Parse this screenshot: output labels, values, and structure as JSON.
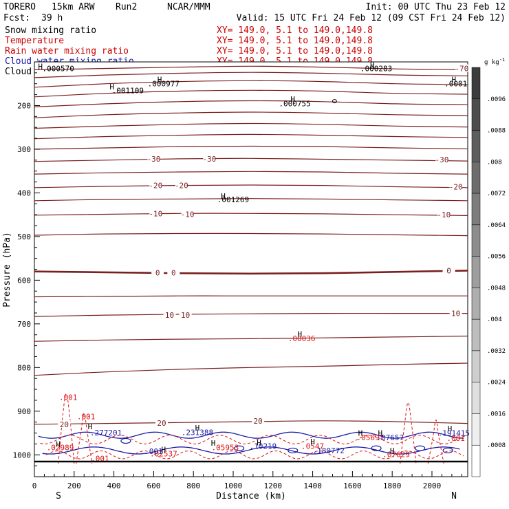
{
  "header": {
    "model": "TORERO",
    "grid": "15km ARW",
    "run": "Run2",
    "org": "NCAR/MMM",
    "init": "Init: 00 UTC Thu 23 Feb 12",
    "fcst_label": "Fcst:",
    "fcst_value": "39 h",
    "valid": "Valid: 15 UTC Fri 24 Feb 12 (09 CST Fri 24 Feb 12)"
  },
  "legend": [
    {
      "label": "Snow mixing ratio",
      "color": "#000000",
      "xy": "XY= 149.0,  5.1 to 149.0,149.8"
    },
    {
      "label": "Temperature",
      "color": "#cc0000",
      "xy": "XY= 149.0,  5.1 to 149.0,149.8"
    },
    {
      "label": "Rain water mixing ratio",
      "color": "#cc0000",
      "xy": "XY= 149.0,  5.1 to 149.0,149.8"
    },
    {
      "label": "Cloud water mixing ratio",
      "color": "#1a1aa6",
      "xy": "XY= 149.0,  5.1 to 149.0,149.8"
    },
    {
      "label": "Cloud ice mixing ratio",
      "color": "#000000",
      "xy": "XY= 149.0,  5.1 to 149.0,149.8"
    }
  ],
  "colors": {
    "temperature": "#7a1f1f",
    "rain": "#dd1111",
    "cloud_water": "#1a1aa6",
    "snow_ice": "#000000"
  },
  "chart_data": {
    "type": "line",
    "xlabel": "Distance (km)",
    "ylabel": "Pressure (hPa)",
    "xlim": [
      0,
      2180
    ],
    "ylim": [
      1050,
      100
    ],
    "x_ticks": [
      0,
      200,
      400,
      600,
      800,
      1000,
      1200,
      1400,
      1600,
      1800,
      2000
    ],
    "y_ticks": [
      200,
      300,
      400,
      500,
      600,
      700,
      800,
      900,
      1000
    ],
    "left_end": "S",
    "right_end": "N",
    "temperature_contours": [
      {
        "level": -75,
        "p": [
          118,
          115,
          112,
          110,
          112,
          116,
          118
        ]
      },
      {
        "level": -70,
        "p": [
          136,
          130,
          126,
          124,
          126,
          130,
          132
        ]
      },
      {
        "level": -65,
        "p": [
          158,
          150,
          145,
          143,
          145,
          150,
          152
        ]
      },
      {
        "level": -60,
        "p": [
          180,
          172,
          167,
          165,
          167,
          172,
          174
        ]
      },
      {
        "level": -55,
        "p": [
          203,
          196,
          191,
          189,
          191,
          196,
          198
        ]
      },
      {
        "level": -50,
        "p": [
          228,
          221,
          217,
          215,
          217,
          221,
          223
        ]
      },
      {
        "level": -45,
        "p": [
          252,
          247,
          243,
          241,
          243,
          247,
          249
        ]
      },
      {
        "level": -40,
        "p": [
          276,
          271,
          268,
          266,
          268,
          271,
          273
        ]
      },
      {
        "level": -35,
        "p": [
          300,
          297,
          294,
          293,
          294,
          297,
          299
        ]
      },
      {
        "level": -30,
        "p": [
          328,
          325,
          322,
          321,
          323,
          325,
          327
        ]
      },
      {
        "level": -25,
        "p": [
          357,
          354,
          352,
          351,
          352,
          355,
          357
        ]
      },
      {
        "level": -20,
        "p": [
          388,
          385,
          383,
          382,
          383,
          386,
          388
        ]
      },
      {
        "level": -15,
        "p": [
          418,
          415,
          414,
          413,
          414,
          416,
          418
        ]
      },
      {
        "level": -10,
        "p": [
          451,
          449,
          447,
          447,
          448,
          450,
          452
        ]
      },
      {
        "level": -5,
        "p": [
          497,
          494,
          493,
          493,
          494,
          496,
          498
        ]
      },
      {
        "level": 0,
        "p": [
          580,
          582,
          584,
          585,
          584,
          581,
          578
        ]
      },
      {
        "level": 5,
        "p": [
          638,
          637,
          636,
          636,
          636,
          636,
          636
        ]
      },
      {
        "level": 10,
        "p": [
          683,
          680,
          678,
          677,
          676,
          676,
          676
        ]
      },
      {
        "level": 15,
        "p": [
          740,
          737,
          735,
          734,
          732,
          730,
          728
        ]
      },
      {
        "level": 20,
        "p": [
          818,
          810,
          804,
          800,
          797,
          793,
          790
        ]
      },
      {
        "level": 25,
        "p": [
          930,
          928,
          926,
          924,
          922,
          924,
          928
        ]
      }
    ],
    "temperature_labels": [
      {
        "text": "-70",
        "x": 2150,
        "p": 115
      },
      {
        "text": "-30",
        "x": 600,
        "p": 322
      },
      {
        "text": "-30",
        "x": 880,
        "p": 322
      },
      {
        "text": "-30",
        "x": 2050,
        "p": 324
      },
      {
        "text": "-20",
        "x": 610,
        "p": 383
      },
      {
        "text": "-20",
        "x": 740,
        "p": 383
      },
      {
        "text": "-20",
        "x": 2120,
        "p": 386
      },
      {
        "text": "-10",
        "x": 610,
        "p": 447
      },
      {
        "text": "-10",
        "x": 770,
        "p": 449
      },
      {
        "text": "-10",
        "x": 2060,
        "p": 450
      },
      {
        "text": "0",
        "x": 620,
        "p": 583
      },
      {
        "text": "0",
        "x": 700,
        "p": 583
      },
      {
        "text": "0",
        "x": 2085,
        "p": 578
      },
      {
        "text": "10",
        "x": 680,
        "p": 680
      },
      {
        "text": "10",
        "x": 760,
        "p": 680
      },
      {
        "text": "10",
        "x": 2120,
        "p": 676
      },
      {
        "text": "20",
        "x": 1125,
        "p": 922
      },
      {
        "text": "20",
        "x": 640,
        "p": 927
      },
      {
        "text": "20",
        "x": 150,
        "p": 930
      }
    ],
    "extrema_labels": [
      {
        "text": ".000570",
        "x": 120,
        "p": 115,
        "color": "snow_ice"
      },
      {
        "text": ".001109",
        "x": 470,
        "p": 165,
        "color": "snow_ice"
      },
      {
        "text": ".000977",
        "x": 650,
        "p": 150,
        "color": "snow_ice"
      },
      {
        "text": ".000755",
        "x": 1310,
        "p": 195,
        "color": "snow_ice"
      },
      {
        "text": ".001269",
        "x": 1000,
        "p": 415,
        "color": "snow_ice"
      },
      {
        "text": ".000283",
        "x": 1720,
        "p": 115,
        "color": "snow_ice"
      },
      {
        "text": ".0001",
        "x": 2120,
        "p": 150,
        "color": "snow_ice"
      },
      {
        "text": ".00036",
        "x": 1345,
        "p": 733,
        "color": "rain"
      },
      {
        "text": ".001",
        "x": 170,
        "p": 868,
        "color": "rain"
      },
      {
        "text": ".001",
        "x": 260,
        "p": 912,
        "color": "rain"
      },
      {
        "text": ".277201",
        "x": 360,
        "p": 949,
        "color": "cloud_water"
      },
      {
        "text": ".231388",
        "x": 820,
        "p": 948,
        "color": "cloud_water"
      },
      {
        "text": ".02989",
        "x": 130,
        "p": 983,
        "color": "rain"
      },
      {
        "text": ".02537",
        "x": 650,
        "p": 997,
        "color": "rain"
      },
      {
        "text": ".001",
        "x": 600,
        "p": 992,
        "color": "cloud_water"
      },
      {
        "text": ".05953",
        "x": 960,
        "p": 983,
        "color": "rain"
      },
      {
        "text": ".10219",
        "x": 1150,
        "p": 980,
        "color": "cloud_water"
      },
      {
        "text": ".0547",
        "x": 1400,
        "p": 980,
        "color": "rain"
      },
      {
        "text": ".180772",
        "x": 1480,
        "p": 990,
        "color": "cloud_water"
      },
      {
        "text": ".05697",
        "x": 1690,
        "p": 960,
        "color": "rain"
      },
      {
        "text": ".07657",
        "x": 1790,
        "p": 960,
        "color": "cloud_water"
      },
      {
        "text": ".191415",
        "x": 2110,
        "p": 950,
        "color": "cloud_water"
      },
      {
        "text": ".001",
        "x": 2120,
        "p": 962,
        "color": "rain"
      },
      {
        "text": ".07629",
        "x": 1820,
        "p": 999,
        "color": "rain"
      },
      {
        "text": ".001",
        "x": 330,
        "p": 1008,
        "color": "rain"
      }
    ],
    "high_markers": [
      {
        "x": 30,
        "p": 110
      },
      {
        "x": 390,
        "p": 157
      },
      {
        "x": 630,
        "p": 140
      },
      {
        "x": 1300,
        "p": 185
      },
      {
        "x": 950,
        "p": 407
      },
      {
        "x": 1700,
        "p": 107
      },
      {
        "x": 2110,
        "p": 140
      },
      {
        "x": 1335,
        "p": 723
      },
      {
        "x": 280,
        "p": 935
      },
      {
        "x": 820,
        "p": 938
      },
      {
        "x": 120,
        "p": 975
      },
      {
        "x": 650,
        "p": 988
      },
      {
        "x": 900,
        "p": 973
      },
      {
        "x": 1130,
        "p": 972
      },
      {
        "x": 1400,
        "p": 970
      },
      {
        "x": 1640,
        "p": 950
      },
      {
        "x": 1740,
        "p": 950
      },
      {
        "x": 2090,
        "p": 940
      },
      {
        "x": 1800,
        "p": 990
      }
    ],
    "colorbar": {
      "unit": "g kg",
      "unit_exp": "-1",
      "ticks": [
        ".0096",
        ".0088",
        ".008",
        ".0072",
        ".0064",
        ".0056",
        ".0048",
        ".004",
        ".0032",
        ".0024",
        ".0016",
        ".0008"
      ]
    }
  }
}
